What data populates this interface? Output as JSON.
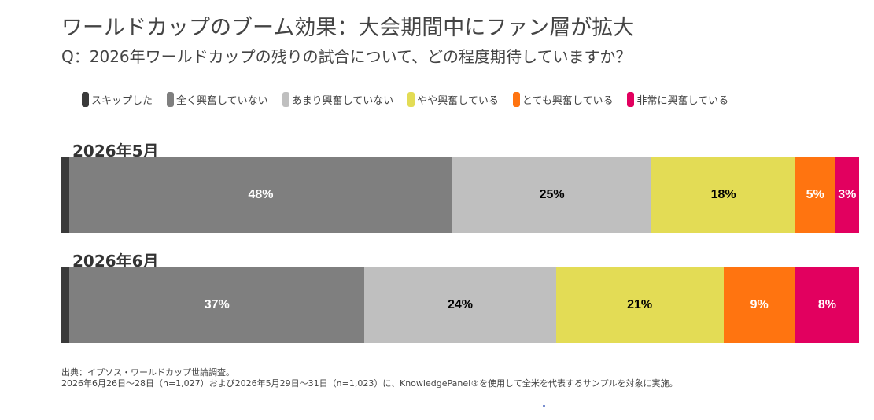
{
  "title": "ワールドカップのブーム効果：大会期間中にファン層が拡大",
  "subtitle": "Q：2026年ワールドカップの残りの試合について、どの程度期待していますか？",
  "legend": [
    {
      "label": "スキップした",
      "color": "#3a3a3a"
    },
    {
      "label": "全く興奮していない",
      "color": "#7f7f7f"
    },
    {
      "label": "あまり興奮していない",
      "color": "#bfbfbf"
    },
    {
      "label": "やや興奮している",
      "color": "#e3dc55"
    },
    {
      "label": "とても興奮している",
      "color": "#ff7410"
    },
    {
      "label": "非常に興奮している",
      "color": "#e2005f"
    }
  ],
  "chart_data": {
    "type": "bar",
    "orientation": "horizontal-stacked-100",
    "series_names": [
      "スキップした",
      "全く興奮していない",
      "あまり興奮していない",
      "やや興奮している",
      "とても興奮している",
      "非常に興奮している"
    ],
    "groups": [
      {
        "label": "2026年5月",
        "values": [
          1,
          48,
          25,
          18,
          5,
          3
        ],
        "labels": [
          "",
          "48%",
          "25%",
          "18%",
          "5%",
          "3%"
        ],
        "label_colors": [
          "#ffffff",
          "#ffffff",
          "#000000",
          "#000000",
          "#ffffff",
          "#ffffff"
        ]
      },
      {
        "label": "2026年6月",
        "values": [
          1,
          37,
          24,
          21,
          9,
          8
        ],
        "labels": [
          "",
          "37%",
          "24%",
          "21%",
          "9%",
          "8%"
        ],
        "label_colors": [
          "#ffffff",
          "#ffffff",
          "#000000",
          "#000000",
          "#ffffff",
          "#ffffff"
        ]
      }
    ]
  },
  "footnote": {
    "line1": "出典：イプソス・ワールドカップ世論調査。",
    "line2": "2026年6月26日〜28日（n=1,027）および2026年5月29日〜31日（n=1,023）に、KnowledgePanel®を使用して全米を代表するサンプルを対象に実施。"
  }
}
